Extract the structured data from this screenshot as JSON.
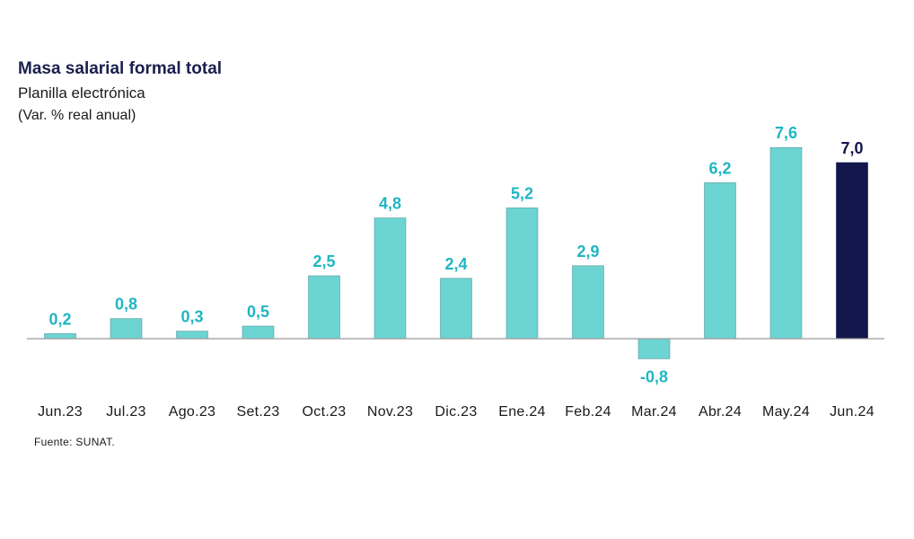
{
  "header": {
    "title": "Masa salarial formal total",
    "subtitle": "Planilla electrónica",
    "units": "(Var. % real anual)"
  },
  "footer": {
    "source": "Fuente: SUNAT."
  },
  "chart_data": {
    "type": "bar",
    "categories": [
      "Jun.23",
      "Jul.23",
      "Ago.23",
      "Set.23",
      "Oct.23",
      "Nov.23",
      "Dic.23",
      "Ene.24",
      "Feb.24",
      "Mar.24",
      "Abr.24",
      "May.24",
      "Jun.24"
    ],
    "values": [
      0.2,
      0.8,
      0.3,
      0.5,
      2.5,
      4.8,
      2.4,
      5.2,
      2.9,
      -0.8,
      6.2,
      7.6,
      7.0
    ],
    "labels": [
      "0,2",
      "0,8",
      "0,3",
      "0,5",
      "2,5",
      "4,8",
      "2,4",
      "5,2",
      "2,9",
      "-0,8",
      "6,2",
      "7,6",
      "7,0"
    ],
    "highlight_index": 12,
    "colors": {
      "bar": "#6cd4d2",
      "bar_highlight": "#12164a",
      "label": "#1fb6c4",
      "label_highlight": "#12164a",
      "axis": "#9a9a9a"
    },
    "grid": false,
    "legend": "none"
  }
}
